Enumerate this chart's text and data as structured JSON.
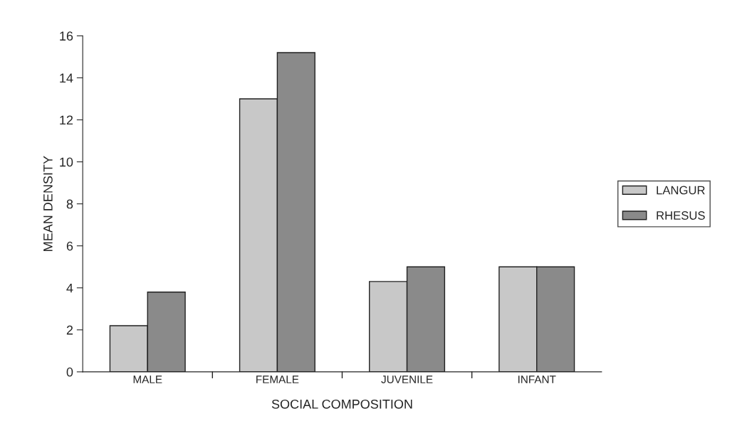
{
  "chart_data": {
    "type": "bar",
    "categories": [
      "MALE",
      "FEMALE",
      "JUVENILE",
      "INFANT"
    ],
    "series": [
      {
        "name": "LANGUR",
        "color": "#c8c8c8",
        "values": [
          2.2,
          13.0,
          4.3,
          5.0
        ]
      },
      {
        "name": "RHESUS",
        "color": "#8a8a8a",
        "values": [
          3.8,
          15.2,
          5.0,
          5.0
        ]
      }
    ],
    "xlabel": "SOCIAL COMPOSITION",
    "ylabel": "MEAN DENSITY",
    "ylim": [
      0,
      16
    ],
    "yticks": [
      0,
      2,
      4,
      6,
      8,
      10,
      12,
      14,
      16
    ],
    "grid": false,
    "legend": "right"
  }
}
